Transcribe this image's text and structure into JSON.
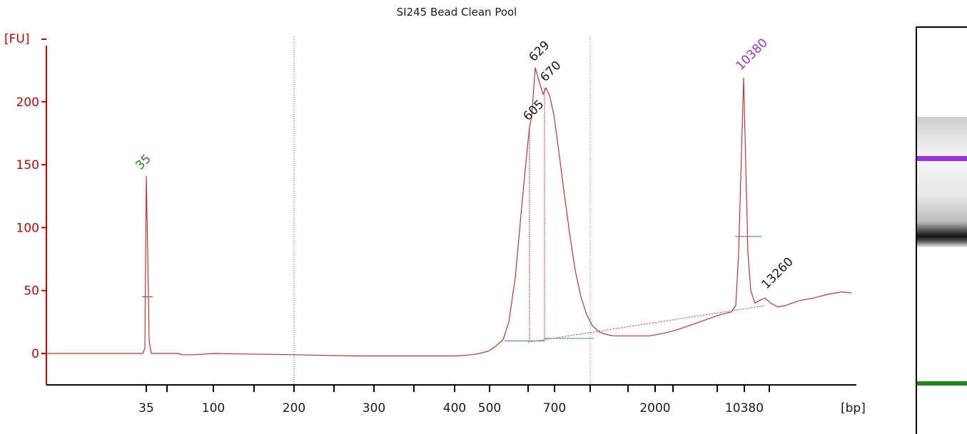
{
  "chart_data": {
    "type": "line",
    "title": "SI245 Bead Clean Pool",
    "ylabel": "[FU]",
    "xlabel": "[bp]",
    "ylim": [
      -25,
      240
    ],
    "y_ticks": [
      0,
      50,
      100,
      150,
      200
    ],
    "x_tick_labels": [
      "35",
      "100",
      "200",
      "300",
      "400",
      "500",
      "700",
      "2000",
      "10380"
    ],
    "colors": {
      "axis": "#d10000",
      "trace": "#c83232",
      "marker": "#1a8a1a",
      "upper_marker": "#9b30e0",
      "peak_label": "#1a1a1a",
      "baseline": "#5a9a8a"
    },
    "peaks": [
      {
        "label": "35",
        "color": "#1a8a1a",
        "height": 141
      },
      {
        "label": "605",
        "color": "#1a1a1a",
        "height": 180
      },
      {
        "label": "629",
        "color": "#1a1a1a",
        "height": 227
      },
      {
        "label": "670",
        "color": "#1a1a1a",
        "height": 211
      },
      {
        "label": "10380",
        "color": "#9b30e0",
        "height": 219
      },
      {
        "label": "13260",
        "color": "#1a1a1a",
        "height": 44
      }
    ]
  },
  "gel": {
    "upper_marker_color": "#9b30e0",
    "lower_marker_color": "#1a8a1a"
  }
}
